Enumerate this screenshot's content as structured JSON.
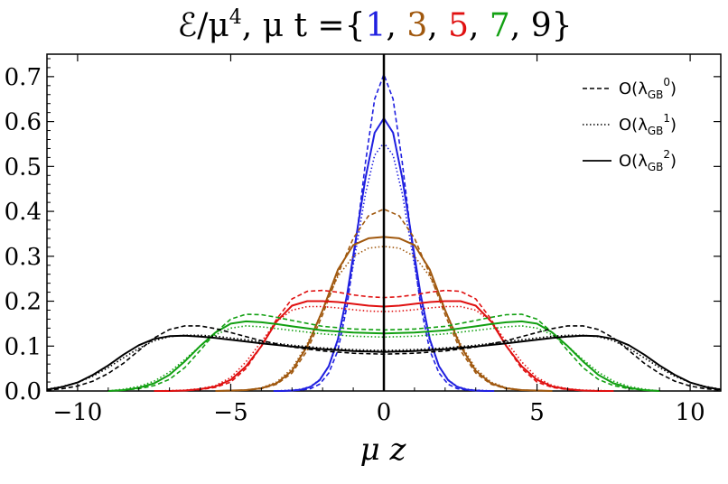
{
  "chart_data": {
    "type": "line",
    "title_math": "ℰ/μ⁴, μ t =",
    "title_prefix": "ℰ/μ",
    "title_power": "4",
    "title_middle": ", μ t =",
    "title_open": "{",
    "title_close": "}",
    "title_times": [
      {
        "label": "1",
        "color": "#1f1fe0"
      },
      {
        "label": "3",
        "color": "#a0580e"
      },
      {
        "label": "5",
        "color": "#e01010"
      },
      {
        "label": "7",
        "color": "#12a012"
      },
      {
        "label": "9",
        "color": "#000000"
      }
    ],
    "xlabel": "μ z",
    "xlim": [
      -11,
      11
    ],
    "ylim": [
      0,
      0.75
    ],
    "xticks": [
      -10,
      -5,
      0,
      5,
      10
    ],
    "xtick_labels": [
      "−10",
      "−5",
      "0",
      "5",
      "10"
    ],
    "yticks": [
      0.0,
      0.1,
      0.2,
      0.3,
      0.4,
      0.5,
      0.6,
      0.7
    ],
    "ytick_labels": [
      "0.0",
      "0.1",
      "0.2",
      "0.3",
      "0.4",
      "0.5",
      "0.6",
      "0.7"
    ],
    "legend": [
      {
        "text": "O(λ",
        "sub": "GB",
        "sup": "0",
        "close": ")",
        "dash": "dashed"
      },
      {
        "text": "O(λ",
        "sub": "GB",
        "sup": "1",
        "close": ")",
        "dash": "dotted"
      },
      {
        "text": "O(λ",
        "sub": "GB",
        "sup": "2",
        "close": ")",
        "dash": "solid"
      }
    ],
    "legend_position": "top-right",
    "grid": false,
    "vertical_line_at": 0,
    "series": [
      {
        "time": "1",
        "order": "0",
        "style": "dashed",
        "color": "#1f1fe0",
        "x": [
          0,
          0.3,
          0.6,
          0.9,
          1.2,
          1.5,
          1.8,
          2.1,
          2.4,
          2.7,
          3.0,
          3.3,
          3.6
        ],
        "y": [
          0.705,
          0.65,
          0.51,
          0.34,
          0.19,
          0.09,
          0.04,
          0.015,
          0.005,
          0.002,
          0.001,
          0,
          0
        ]
      },
      {
        "time": "1",
        "order": "1",
        "style": "dotted",
        "color": "#1f1fe0",
        "x": [
          0,
          0.3,
          0.6,
          0.9,
          1.2,
          1.5,
          1.8,
          2.1,
          2.4,
          2.7,
          3.0,
          3.3,
          3.6
        ],
        "y": [
          0.553,
          0.525,
          0.44,
          0.32,
          0.2,
          0.11,
          0.055,
          0.025,
          0.01,
          0.004,
          0.002,
          0.001,
          0
        ]
      },
      {
        "time": "1",
        "order": "2",
        "style": "solid",
        "color": "#1f1fe0",
        "x": [
          0,
          0.3,
          0.6,
          0.9,
          1.2,
          1.5,
          1.8,
          2.1,
          2.4,
          2.7,
          3.0,
          3.3,
          3.6
        ],
        "y": [
          0.607,
          0.575,
          0.475,
          0.345,
          0.215,
          0.115,
          0.055,
          0.024,
          0.009,
          0.003,
          0.001,
          0,
          0
        ]
      },
      {
        "time": "3",
        "order": "0",
        "style": "dashed",
        "color": "#a0580e",
        "x": [
          0,
          0.5,
          1.0,
          1.5,
          2.0,
          2.5,
          3.0,
          3.5,
          4.0,
          4.5,
          5.0,
          5.5
        ],
        "y": [
          0.405,
          0.39,
          0.34,
          0.26,
          0.17,
          0.09,
          0.04,
          0.015,
          0.005,
          0.002,
          0.001,
          0
        ]
      },
      {
        "time": "3",
        "order": "1",
        "style": "dotted",
        "color": "#a0580e",
        "x": [
          0,
          0.5,
          1.0,
          1.5,
          2.0,
          2.5,
          3.0,
          3.5,
          4.0,
          4.5,
          5.0,
          5.5
        ],
        "y": [
          0.322,
          0.318,
          0.3,
          0.255,
          0.18,
          0.105,
          0.05,
          0.02,
          0.007,
          0.002,
          0.001,
          0
        ]
      },
      {
        "time": "3",
        "order": "2",
        "style": "solid",
        "color": "#a0580e",
        "x": [
          0,
          0.5,
          1.0,
          1.5,
          2.0,
          2.5,
          3.0,
          3.5,
          4.0,
          4.5,
          5.0,
          5.5
        ],
        "y": [
          0.343,
          0.34,
          0.325,
          0.27,
          0.18,
          0.1,
          0.045,
          0.017,
          0.006,
          0.002,
          0.001,
          0
        ]
      },
      {
        "time": "5",
        "order": "0",
        "style": "dashed",
        "color": "#e01010",
        "x": [
          0,
          0.5,
          1.0,
          1.5,
          2.0,
          2.5,
          3.0,
          3.5,
          4.0,
          4.5,
          5.0,
          5.5,
          6.0,
          6.5,
          7.0,
          7.5
        ],
        "y": [
          0.208,
          0.21,
          0.214,
          0.22,
          0.224,
          0.222,
          0.205,
          0.16,
          0.1,
          0.05,
          0.02,
          0.008,
          0.003,
          0.001,
          0,
          0
        ]
      },
      {
        "time": "5",
        "order": "1",
        "style": "dotted",
        "color": "#e01010",
        "x": [
          0,
          0.5,
          1.0,
          1.5,
          2.0,
          2.5,
          3.0,
          3.5,
          4.0,
          4.5,
          5.0,
          5.5,
          6.0,
          6.5,
          7.0,
          7.5
        ],
        "y": [
          0.177,
          0.178,
          0.181,
          0.185,
          0.188,
          0.188,
          0.18,
          0.155,
          0.11,
          0.065,
          0.03,
          0.012,
          0.005,
          0.002,
          0.001,
          0
        ]
      },
      {
        "time": "5",
        "order": "2",
        "style": "solid",
        "color": "#e01010",
        "x": [
          0,
          0.5,
          1.0,
          1.5,
          2.0,
          2.5,
          3.0,
          3.5,
          4.0,
          4.5,
          5.0,
          5.5,
          6.0,
          6.5,
          7.0,
          7.5
        ],
        "y": [
          0.188,
          0.19,
          0.194,
          0.198,
          0.2,
          0.2,
          0.19,
          0.155,
          0.1,
          0.055,
          0.025,
          0.01,
          0.004,
          0.001,
          0,
          0
        ]
      },
      {
        "time": "7",
        "order": "0",
        "style": "dashed",
        "color": "#12a012",
        "x": [
          0,
          1.0,
          2.0,
          3.0,
          3.5,
          4.0,
          4.5,
          5.0,
          5.5,
          6.0,
          6.5,
          7.0,
          7.5,
          8.0,
          8.5,
          9.0
        ],
        "y": [
          0.136,
          0.138,
          0.144,
          0.157,
          0.164,
          0.17,
          0.171,
          0.16,
          0.13,
          0.09,
          0.052,
          0.026,
          0.012,
          0.005,
          0.002,
          0
        ]
      },
      {
        "time": "7",
        "order": "1",
        "style": "dotted",
        "color": "#12a012",
        "x": [
          0,
          1.0,
          2.0,
          3.0,
          3.5,
          4.0,
          4.5,
          5.0,
          5.5,
          6.0,
          6.5,
          7.0,
          7.5,
          8.0,
          8.5,
          9.0
        ],
        "y": [
          0.12,
          0.122,
          0.127,
          0.135,
          0.139,
          0.143,
          0.145,
          0.14,
          0.125,
          0.1,
          0.07,
          0.042,
          0.022,
          0.01,
          0.004,
          0
        ]
      },
      {
        "time": "7",
        "order": "2",
        "style": "solid",
        "color": "#12a012",
        "x": [
          0,
          1.0,
          2.0,
          3.0,
          3.5,
          4.0,
          4.5,
          5.0,
          5.5,
          6.0,
          6.5,
          7.0,
          7.5,
          8.0,
          8.5,
          9.0
        ],
        "y": [
          0.128,
          0.13,
          0.135,
          0.144,
          0.149,
          0.153,
          0.155,
          0.15,
          0.13,
          0.1,
          0.066,
          0.036,
          0.017,
          0.007,
          0.002,
          0
        ]
      },
      {
        "time": "9",
        "order": "0",
        "style": "dashed",
        "color": "#000000",
        "x": [
          0,
          1,
          2,
          3,
          4,
          5,
          5.5,
          6,
          6.5,
          7,
          7.5,
          8,
          8.5,
          9,
          9.5,
          10,
          10.5,
          11
        ],
        "y": [
          0.082,
          0.084,
          0.089,
          0.098,
          0.112,
          0.13,
          0.139,
          0.145,
          0.145,
          0.137,
          0.118,
          0.09,
          0.062,
          0.039,
          0.022,
          0.011,
          0.005,
          0.002
        ]
      },
      {
        "time": "9",
        "order": "1",
        "style": "dotted",
        "color": "#000000",
        "x": [
          0,
          1,
          2,
          3,
          4,
          5,
          5.5,
          6,
          6.5,
          7,
          7.5,
          8,
          8.5,
          9,
          9.5,
          10,
          10.5,
          11
        ],
        "y": [
          0.09,
          0.092,
          0.096,
          0.102,
          0.11,
          0.118,
          0.122,
          0.124,
          0.124,
          0.121,
          0.112,
          0.095,
          0.074,
          0.052,
          0.033,
          0.019,
          0.01,
          0.004
        ]
      },
      {
        "time": "9",
        "order": "2",
        "style": "solid",
        "color": "#000000",
        "x": [
          0,
          1,
          2,
          3,
          4,
          5,
          5.5,
          6,
          6.5,
          7,
          7.5,
          8,
          8.5,
          9,
          9.5,
          10,
          10.5,
          11
        ],
        "y": [
          0.087,
          0.089,
          0.093,
          0.099,
          0.106,
          0.114,
          0.118,
          0.121,
          0.123,
          0.122,
          0.116,
          0.102,
          0.081,
          0.057,
          0.036,
          0.019,
          0.009,
          0.003
        ]
      }
    ]
  }
}
